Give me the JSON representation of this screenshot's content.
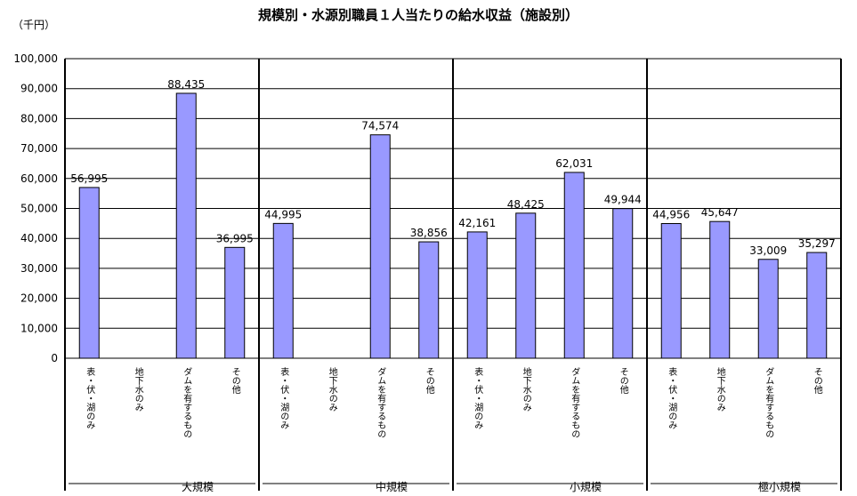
{
  "chart_data": {
    "type": "bar",
    "title": "規模別・水源別職員１人当たりの給水収益（施設別）",
    "unit_label": "（千円）",
    "ylim": [
      0,
      100000
    ],
    "yticks": [
      "0",
      "10,000",
      "20,000",
      "30,000",
      "40,000",
      "50,000",
      "60,000",
      "70,000",
      "80,000",
      "90,000",
      "100,000"
    ],
    "grid": true,
    "bar_color": "#9999ff",
    "groups": [
      {
        "name": "大規模",
        "categories": [
          "表・伏・湖のみ",
          "地下水のみ",
          "ダムを有するもの",
          "その他"
        ],
        "values": [
          56995,
          null,
          88435,
          36995
        ],
        "value_labels": [
          "56,995",
          "",
          "88,435",
          "36,995"
        ]
      },
      {
        "name": "中規模",
        "categories": [
          "表・伏・湖のみ",
          "地下水のみ",
          "ダムを有するもの",
          "その他"
        ],
        "values": [
          44995,
          null,
          74574,
          38856
        ],
        "value_labels": [
          "44,995",
          "",
          "74,574",
          "38,856"
        ]
      },
      {
        "name": "小規模",
        "categories": [
          "表・伏・湖のみ",
          "地下水のみ",
          "ダムを有するもの",
          "その他"
        ],
        "values": [
          42161,
          48425,
          62031,
          49944
        ],
        "value_labels": [
          "42,161",
          "48,425",
          "62,031",
          "49,944"
        ]
      },
      {
        "name": "極小規模",
        "categories": [
          "表・伏・湖のみ",
          "地下水のみ",
          "ダムを有するもの",
          "その他"
        ],
        "values": [
          44956,
          45647,
          33009,
          35297
        ],
        "value_labels": [
          "44,956",
          "45,647",
          "33,009",
          "35,297"
        ]
      }
    ]
  }
}
